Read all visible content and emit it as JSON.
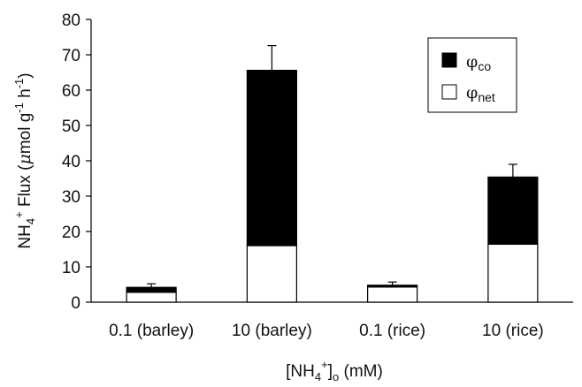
{
  "chart_data": {
    "type": "bar",
    "stacked": true,
    "categories": [
      "0.1 (barley)",
      "10 (barley)",
      "0.1 (rice)",
      "10 (rice)"
    ],
    "series": [
      {
        "name": "φnet",
        "values": [
          2.8,
          16.0,
          4.3,
          16.4
        ],
        "color": "#ffffff"
      },
      {
        "name": "φco",
        "values": [
          1.4,
          49.6,
          0.5,
          19.0
        ],
        "color": "#000000"
      }
    ],
    "error_bars_upper": [
      1.0,
      7.0,
      0.9,
      3.6
    ],
    "ylim": [
      0,
      80
    ],
    "yticks": [
      "0",
      "10",
      "20",
      "30",
      "40",
      "50",
      "60",
      "70",
      "80"
    ],
    "ylabel": {
      "nh": "NH",
      "nh_sub": "4",
      "nh_sup": "+",
      "flux": " Flux (",
      "mu": "μ",
      "mol": "mol g",
      "g_sup": "-1",
      "h": " h",
      "h_sup": "-1",
      "close": ")"
    },
    "xlabel": {
      "open": "[NH",
      "sub": "4",
      "sup": "+",
      "close": "]",
      "o_sub": "o",
      "unit": " (mM)"
    },
    "legend": {
      "position": "top-right",
      "items": [
        {
          "symbol": "φ",
          "sub": "co",
          "fill": "#000000"
        },
        {
          "symbol": "φ",
          "sub": "net",
          "fill": "#ffffff"
        }
      ]
    },
    "grid": false
  }
}
